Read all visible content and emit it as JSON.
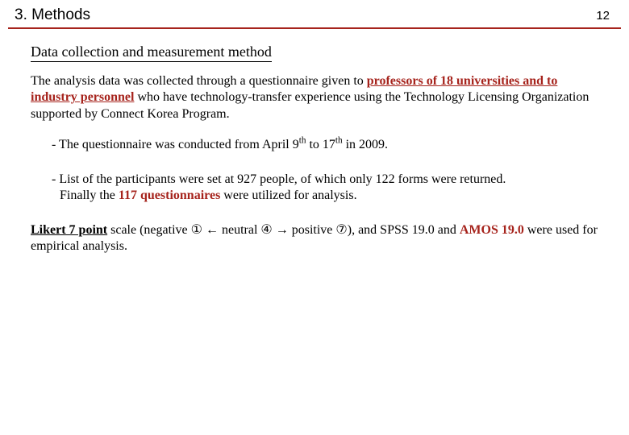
{
  "colors": {
    "accent": "#a6231c",
    "text": "#000000",
    "background": "#ffffff"
  },
  "typography": {
    "header_font": "Arial",
    "body_font": "Times New Roman",
    "section_title_size": 19,
    "body_size": 16,
    "subheading_size": 18
  },
  "header": {
    "section_title": "3. Methods",
    "page_number": "12"
  },
  "subheading": "Data collection and measurement method",
  "para1": {
    "t1": "The analysis data was collected through a questionnaire given to ",
    "hl1": "professors of 18 universities and to industry personnel",
    "t2": " who have technology-transfer experience using the Technology Licensing Organization supported by Connect Korea Program."
  },
  "bullet1": {
    "t1": "- The questionnaire was conducted from April 9",
    "sup1": "th",
    "t2": " to 17",
    "sup2": "th",
    "t3": " in 2009."
  },
  "bullet2": {
    "line1": "- List of the participants were set at 927 people, of which only 122 forms were returned.",
    "line2a": "Finally the ",
    "hl": "117 questionnaires",
    "line2b": " were utilized for analysis."
  },
  "para2": {
    "hl1": "Likert 7 point",
    "t1": " scale (negative ",
    "c1": "①",
    "t2": " ← neutral ",
    "c2": "④",
    "t3": " → positive ",
    "c3": "⑦",
    "t4": "), and SPSS 19.0 and ",
    "hl2": "AMOS 19.0",
    "t5": " were used for empirical analysis."
  }
}
